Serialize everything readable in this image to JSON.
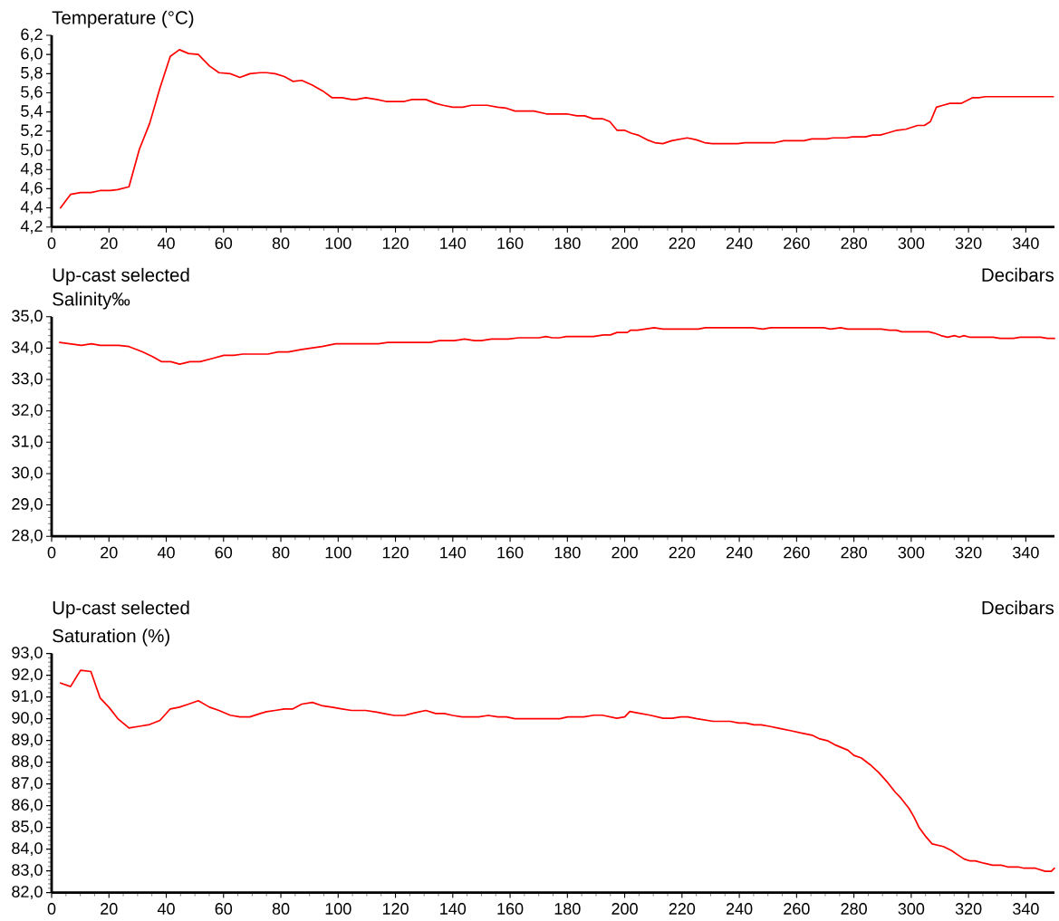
{
  "chart_data": [
    {
      "type": "line",
      "ylabel": "Temperature (°C)",
      "xlabel": "Decibars",
      "annotations": [
        "Up-cast selected"
      ],
      "color": "#ff0000",
      "x": [
        3.1,
        6.6,
        10.1,
        13.7,
        16.9,
        20.5,
        23.1,
        27,
        30.6,
        34.2,
        37.8,
        41.4,
        44.6,
        47.8,
        51.2,
        55.1,
        58.4,
        62.3,
        65.7,
        69.2,
        72.8,
        75,
        78,
        81.2,
        84.2,
        87.3,
        91,
        94.6,
        97.8,
        101.4,
        104.7,
        106.3,
        109.6,
        113.5,
        116.7,
        120.1,
        123.1,
        125.8,
        130.6,
        134,
        136.6,
        140,
        143.4,
        146.6,
        152,
        155.7,
        158.7,
        161.7,
        166.5,
        168.3,
        172.7,
        179.8,
        183.3,
        186,
        189,
        192.2,
        194.8,
        197.3,
        199.9,
        202.2,
        204.6,
        207.8,
        210.5,
        213.3,
        216.4,
        221.8,
        225,
        227.9,
        230.6,
        239.5,
        241.9,
        252.5,
        255.5,
        262.6,
        265.3,
        270.5,
        272.7,
        277.4,
        279.5,
        284.1,
        286.6,
        289.2,
        291.6,
        295.1,
        298.1,
        302.2,
        304.6,
        306.7,
        308.8,
        311.1,
        313.5,
        317.4,
        321.5,
        323.6,
        325.9,
        349.6
      ],
      "values": [
        4.4,
        4.54,
        4.56,
        4.56,
        4.58,
        4.58,
        4.59,
        4.62,
        5.01,
        5.28,
        5.65,
        5.98,
        6.05,
        6.01,
        6.0,
        5.88,
        5.81,
        5.8,
        5.76,
        5.8,
        5.81,
        5.81,
        5.8,
        5.77,
        5.72,
        5.73,
        5.68,
        5.62,
        5.55,
        5.55,
        5.53,
        5.53,
        5.55,
        5.53,
        5.51,
        5.51,
        5.51,
        5.53,
        5.53,
        5.49,
        5.47,
        5.45,
        5.45,
        5.47,
        5.47,
        5.45,
        5.44,
        5.41,
        5.41,
        5.41,
        5.38,
        5.38,
        5.36,
        5.36,
        5.33,
        5.33,
        5.3,
        5.21,
        5.21,
        5.18,
        5.16,
        5.11,
        5.08,
        5.07,
        5.1,
        5.13,
        5.11,
        5.08,
        5.07,
        5.07,
        5.08,
        5.08,
        5.1,
        5.1,
        5.12,
        5.12,
        5.13,
        5.13,
        5.14,
        5.14,
        5.16,
        5.16,
        5.18,
        5.21,
        5.22,
        5.26,
        5.26,
        5.3,
        5.45,
        5.47,
        5.49,
        5.49,
        5.55,
        5.55,
        5.56,
        5.56
      ],
      "xlim": [
        0,
        350
      ],
      "xticks": [
        0,
        20,
        40,
        60,
        80,
        100,
        120,
        140,
        160,
        180,
        200,
        220,
        240,
        260,
        280,
        300,
        320,
        340
      ],
      "ylim": [
        4.2,
        6.2
      ],
      "yticks": [
        {
          "value": 4.2,
          "label": "4,2"
        },
        {
          "value": 4.4,
          "label": "4,4"
        },
        {
          "value": 4.6,
          "label": "4,6"
        },
        {
          "value": 4.8,
          "label": "4,8"
        },
        {
          "value": 5.0,
          "label": "5,0"
        },
        {
          "value": 5.2,
          "label": "5,2"
        },
        {
          "value": 5.4,
          "label": "5,4"
        },
        {
          "value": 5.6,
          "label": "5,6"
        },
        {
          "value": 5.8,
          "label": "5,8"
        },
        {
          "value": 6.0,
          "label": "6,0"
        },
        {
          "value": 6.2,
          "label": "6,2"
        }
      ]
    },
    {
      "type": "line",
      "ylabel": "Salinity‰",
      "xlabel": "Decibars",
      "annotations": [
        "Up-cast selected"
      ],
      "color": "#ff0000",
      "x": [
        2.8,
        10.4,
        13.9,
        17,
        23.4,
        27,
        31.7,
        35.2,
        38.3,
        41.6,
        44.7,
        48.3,
        51.8,
        56.5,
        60.1,
        63.6,
        66.7,
        75.5,
        79,
        82.6,
        87.3,
        94.4,
        99.1,
        114,
        117.3,
        132.2,
        135.3,
        140.5,
        144.1,
        147.6,
        150,
        153.5,
        159.4,
        163,
        170.1,
        172.5,
        174.8,
        177.2,
        179.6,
        189,
        192.6,
        195,
        197.3,
        200.9,
        202,
        204.4,
        210.3,
        213.4,
        225.7,
        228.1,
        244.6,
        248.2,
        251,
        269.5,
        271.8,
        275.4,
        277.8,
        289.6,
        292.4,
        294.8,
        296.7,
        306.2,
        308,
        310.4,
        312.7,
        315.1,
        316.8,
        318.4,
        320.3,
        328.6,
        331,
        335.7,
        338,
        345.2,
        347.5,
        350
      ],
      "values": [
        34.18,
        34.09,
        34.14,
        34.09,
        34.09,
        34.05,
        33.88,
        33.73,
        33.57,
        33.57,
        33.49,
        33.57,
        33.57,
        33.68,
        33.77,
        33.77,
        33.81,
        33.81,
        33.88,
        33.88,
        33.96,
        34.05,
        34.14,
        34.14,
        34.18,
        34.18,
        34.24,
        34.24,
        34.29,
        34.24,
        34.24,
        34.29,
        34.29,
        34.33,
        34.33,
        34.37,
        34.33,
        34.33,
        34.37,
        34.37,
        34.42,
        34.42,
        34.5,
        34.5,
        34.57,
        34.57,
        34.65,
        34.61,
        34.61,
        34.65,
        34.65,
        34.61,
        34.65,
        34.65,
        34.61,
        34.65,
        34.61,
        34.61,
        34.57,
        34.57,
        34.52,
        34.52,
        34.48,
        34.4,
        34.35,
        34.4,
        34.35,
        34.4,
        34.35,
        34.35,
        34.31,
        34.31,
        34.35,
        34.35,
        34.31,
        34.31
      ],
      "xlim": [
        0,
        350
      ],
      "xticks": [
        0,
        20,
        40,
        60,
        80,
        100,
        120,
        140,
        160,
        180,
        200,
        220,
        240,
        260,
        280,
        300,
        320,
        340
      ],
      "ylim": [
        28,
        35
      ],
      "yticks": [
        {
          "value": 28,
          "label": "28,0"
        },
        {
          "value": 29,
          "label": "29,0"
        },
        {
          "value": 30,
          "label": "30,0"
        },
        {
          "value": 31,
          "label": "31,0"
        },
        {
          "value": 32,
          "label": "32,0"
        },
        {
          "value": 33,
          "label": "33,0"
        },
        {
          "value": 34,
          "label": "34,0"
        },
        {
          "value": 35,
          "label": "35,0"
        }
      ]
    },
    {
      "type": "line",
      "ylabel": "Saturation (%)",
      "color": "#ff0000",
      "x": [
        3.1,
        6.6,
        10.1,
        13.7,
        16.9,
        20.1,
        23.1,
        27,
        30.6,
        34.2,
        37.8,
        41.4,
        44.6,
        47.8,
        51.2,
        55.1,
        58.4,
        62.3,
        65.7,
        69.2,
        72.8,
        75,
        78,
        81.2,
        84.2,
        87.3,
        91,
        94.6,
        97.8,
        101.4,
        104.7,
        109.6,
        113.5,
        116.7,
        119.5,
        123.1,
        126.7,
        130.6,
        134,
        137,
        140,
        143.4,
        149,
        152.4,
        155.7,
        158.7,
        161.7,
        177.4,
        180.1,
        185.7,
        189.3,
        192.2,
        197.2,
        200,
        201.8,
        204.7,
        208.9,
        213.4,
        216.6,
        219.6,
        222,
        225.2,
        230.9,
        236.8,
        239.8,
        242.2,
        245.2,
        247.6,
        250.5,
        254.1,
        258.2,
        261.2,
        265.4,
        268.1,
        270.7,
        273.7,
        277.9,
        280,
        282.6,
        285.6,
        288.6,
        291.8,
        294.3,
        296.5,
        299.3,
        301,
        302.8,
        305.2,
        307.3,
        311.2,
        314.1,
        316.2,
        318.5,
        320.4,
        322.4,
        325.4,
        328.4,
        331.4,
        333.7,
        337.3,
        339.4,
        343.3,
        346.8,
        348.9,
        350
      ],
      "values": [
        91.64,
        91.48,
        92.23,
        92.17,
        90.96,
        90.51,
        90.0,
        89.57,
        89.65,
        89.73,
        89.92,
        90.45,
        90.53,
        90.67,
        90.83,
        90.53,
        90.38,
        90.16,
        90.08,
        90.08,
        90.24,
        90.32,
        90.38,
        90.45,
        90.45,
        90.67,
        90.75,
        90.59,
        90.53,
        90.45,
        90.38,
        90.38,
        90.3,
        90.22,
        90.15,
        90.15,
        90.27,
        90.38,
        90.24,
        90.24,
        90.15,
        90.08,
        90.08,
        90.15,
        90.08,
        90.08,
        90.0,
        90.0,
        90.08,
        90.08,
        90.16,
        90.16,
        90.02,
        90.08,
        90.33,
        90.26,
        90.16,
        90.02,
        90.02,
        90.08,
        90.08,
        90.0,
        89.88,
        89.88,
        89.8,
        89.8,
        89.72,
        89.72,
        89.65,
        89.55,
        89.44,
        89.35,
        89.24,
        89.07,
        88.99,
        88.78,
        88.55,
        88.31,
        88.19,
        87.89,
        87.53,
        87.06,
        86.64,
        86.33,
        85.86,
        85.47,
        84.98,
        84.56,
        84.24,
        84.12,
        83.93,
        83.74,
        83.54,
        83.46,
        83.46,
        83.35,
        83.26,
        83.26,
        83.18,
        83.18,
        83.12,
        83.12,
        82.98,
        82.98,
        83.12
      ],
      "xlim": [
        0,
        350
      ],
      "xticks": [
        0,
        20,
        40,
        60,
        80,
        100,
        120,
        140,
        160,
        180,
        200,
        220,
        240,
        260,
        280,
        300,
        320,
        340
      ],
      "ylim": [
        82,
        93
      ],
      "yticks": [
        {
          "value": 82,
          "label": "82,0"
        },
        {
          "value": 83,
          "label": "83,0"
        },
        {
          "value": 84,
          "label": "84,0"
        },
        {
          "value": 85,
          "label": "85,0"
        },
        {
          "value": 86,
          "label": "86,0"
        },
        {
          "value": 87,
          "label": "87,0"
        },
        {
          "value": 88,
          "label": "88,0"
        },
        {
          "value": 89,
          "label": "89,0"
        },
        {
          "value": 90,
          "label": "90,0"
        },
        {
          "value": 91,
          "label": "91,0"
        },
        {
          "value": 92,
          "label": "92,0"
        },
        {
          "value": 93,
          "label": "93,0"
        }
      ]
    }
  ]
}
